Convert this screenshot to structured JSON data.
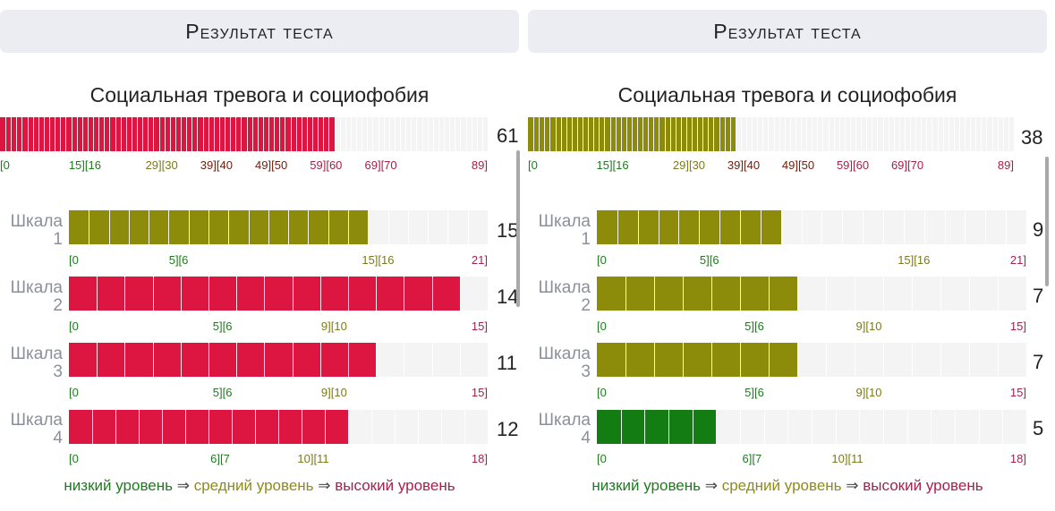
{
  "colors": {
    "red": "#dc1541",
    "olive": "#8c8b0a",
    "green": "#137d13",
    "tick_green": "#1e7b1e",
    "tick_olive": "#7c7a18",
    "tick_dark": "#6e2010",
    "tick_red": "#a8204a",
    "legend_low": "#207a20",
    "legend_mid": "#8e8b1a",
    "legend_high": "#a8204a"
  },
  "panels": [
    {
      "header": "Результат теста",
      "title": "Социальная тревога и социофобия",
      "main": {
        "score": "61",
        "value": 61,
        "max": 89,
        "color": "red",
        "ticks": [
          {
            "text": "[0",
            "pos": 0,
            "color": "tick_green"
          },
          {
            "text": "15][16",
            "pos": 15.5,
            "color": "tick_green"
          },
          {
            "text": "29][30",
            "pos": 29.5,
            "color": "tick_olive"
          },
          {
            "text": "39][40",
            "pos": 39.5,
            "color": "tick_dark"
          },
          {
            "text": "49][50",
            "pos": 49.5,
            "color": "tick_dark"
          },
          {
            "text": "59][60",
            "pos": 59.5,
            "color": "tick_red"
          },
          {
            "text": "69][70",
            "pos": 69.5,
            "color": "tick_red"
          },
          {
            "text": "89]",
            "pos": 89,
            "color": "tick_red"
          }
        ]
      },
      "scales": [
        {
          "label": "Шкала",
          "num": "1",
          "score": "15",
          "value": 15,
          "max": 21,
          "color": "olive",
          "ticks": [
            {
              "text": "[0",
              "pos": 0,
              "color": "tick_green"
            },
            {
              "text": "5][6",
              "pos": 5.5,
              "color": "tick_green"
            },
            {
              "text": "15][16",
              "pos": 15.5,
              "color": "tick_olive"
            },
            {
              "text": "21]",
              "pos": 21,
              "color": "tick_red"
            }
          ]
        },
        {
          "label": "Шкала",
          "num": "2",
          "score": "14",
          "value": 14,
          "max": 15,
          "color": "red",
          "ticks": [
            {
              "text": "[0",
              "pos": 0,
              "color": "tick_green"
            },
            {
              "text": "5][6",
              "pos": 5.5,
              "color": "tick_green"
            },
            {
              "text": "9][10",
              "pos": 9.5,
              "color": "tick_olive"
            },
            {
              "text": "15]",
              "pos": 15,
              "color": "tick_red"
            }
          ]
        },
        {
          "label": "Шкала",
          "num": "3",
          "score": "11",
          "value": 11,
          "max": 15,
          "color": "red",
          "ticks": [
            {
              "text": "[0",
              "pos": 0,
              "color": "tick_green"
            },
            {
              "text": "5][6",
              "pos": 5.5,
              "color": "tick_green"
            },
            {
              "text": "9][10",
              "pos": 9.5,
              "color": "tick_olive"
            },
            {
              "text": "15]",
              "pos": 15,
              "color": "tick_red"
            }
          ]
        },
        {
          "label": "Шкала",
          "num": "4",
          "score": "12",
          "value": 12,
          "max": 18,
          "color": "red",
          "ticks": [
            {
              "text": "[0",
              "pos": 0,
              "color": "tick_green"
            },
            {
              "text": "6][7",
              "pos": 6.5,
              "color": "tick_green"
            },
            {
              "text": "10][11",
              "pos": 10.5,
              "color": "tick_olive"
            },
            {
              "text": "18]",
              "pos": 18,
              "color": "tick_red"
            }
          ]
        }
      ]
    },
    {
      "header": "Результат теста",
      "title": "Социальная тревога и социофобия",
      "main": {
        "score": "38",
        "value": 38,
        "max": 89,
        "color": "olive",
        "ticks": [
          {
            "text": "[0",
            "pos": 0,
            "color": "tick_green"
          },
          {
            "text": "15][16",
            "pos": 15.5,
            "color": "tick_green"
          },
          {
            "text": "29][30",
            "pos": 29.5,
            "color": "tick_olive"
          },
          {
            "text": "39][40",
            "pos": 39.5,
            "color": "tick_dark"
          },
          {
            "text": "49][50",
            "pos": 49.5,
            "color": "tick_dark"
          },
          {
            "text": "59][60",
            "pos": 59.5,
            "color": "tick_red"
          },
          {
            "text": "69][70",
            "pos": 69.5,
            "color": "tick_red"
          },
          {
            "text": "89]",
            "pos": 89,
            "color": "tick_red"
          }
        ]
      },
      "scales": [
        {
          "label": "Шкала",
          "num": "1",
          "score": "9",
          "value": 9,
          "max": 21,
          "color": "olive",
          "ticks": [
            {
              "text": "[0",
              "pos": 0,
              "color": "tick_green"
            },
            {
              "text": "5][6",
              "pos": 5.5,
              "color": "tick_green"
            },
            {
              "text": "15][16",
              "pos": 15.5,
              "color": "tick_olive"
            },
            {
              "text": "21]",
              "pos": 21,
              "color": "tick_red"
            }
          ]
        },
        {
          "label": "Шкала",
          "num": "2",
          "score": "7",
          "value": 7,
          "max": 15,
          "color": "olive",
          "ticks": [
            {
              "text": "[0",
              "pos": 0,
              "color": "tick_green"
            },
            {
              "text": "5][6",
              "pos": 5.5,
              "color": "tick_green"
            },
            {
              "text": "9][10",
              "pos": 9.5,
              "color": "tick_olive"
            },
            {
              "text": "15]",
              "pos": 15,
              "color": "tick_red"
            }
          ]
        },
        {
          "label": "Шкала",
          "num": "3",
          "score": "7",
          "value": 7,
          "max": 15,
          "color": "olive",
          "ticks": [
            {
              "text": "[0",
              "pos": 0,
              "color": "tick_green"
            },
            {
              "text": "5][6",
              "pos": 5.5,
              "color": "tick_green"
            },
            {
              "text": "9][10",
              "pos": 9.5,
              "color": "tick_olive"
            },
            {
              "text": "15]",
              "pos": 15,
              "color": "tick_red"
            }
          ]
        },
        {
          "label": "Шкала",
          "num": "4",
          "score": "5",
          "value": 5,
          "max": 18,
          "color": "green",
          "ticks": [
            {
              "text": "[0",
              "pos": 0,
              "color": "tick_green"
            },
            {
              "text": "6][7",
              "pos": 6.5,
              "color": "tick_green"
            },
            {
              "text": "10][11",
              "pos": 10.5,
              "color": "tick_olive"
            },
            {
              "text": "18]",
              "pos": 18,
              "color": "tick_red"
            }
          ]
        }
      ]
    }
  ],
  "legend": {
    "low": "низкий уровень",
    "arrow": "⇒",
    "mid": "средний уровень",
    "high": "высокий уровень"
  }
}
